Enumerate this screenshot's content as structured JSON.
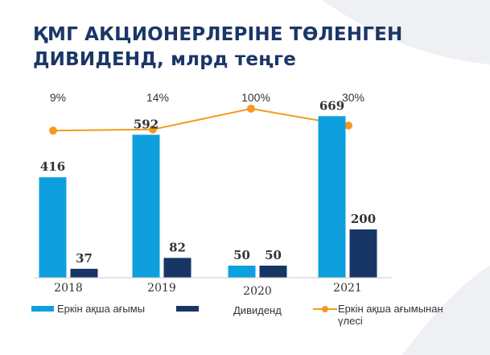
{
  "title": {
    "line1": "ҚМГ АКЦИОНЕРЛЕРІНЕ ТӨЛЕНГЕН",
    "line2": "ДИВИДЕНД, млрд теңге"
  },
  "colors": {
    "free_cash_flow": "#0ea0de",
    "dividend": "#173665",
    "share_line": "#f39a1e",
    "axis": "#c8c8c8",
    "decor": "#eef0f4"
  },
  "chart_data": {
    "type": "bar+line",
    "categories": [
      "2018",
      "2019",
      "2020",
      "2021"
    ],
    "series": [
      {
        "name": "Еркін ақша ағымы",
        "type": "bar",
        "values": [
          416,
          592,
          50,
          669
        ]
      },
      {
        "name": "Дивиденд",
        "type": "bar",
        "values": [
          37,
          82,
          50,
          200
        ]
      },
      {
        "name": "Еркін ақша ағымынан үлесі",
        "type": "line",
        "values": [
          9,
          14,
          100,
          30
        ],
        "labels": [
          "9%",
          "14%",
          "100%",
          "30%"
        ]
      }
    ],
    "ylim": [
      0,
      750
    ],
    "line_ylim": [
      -600,
      150
    ]
  },
  "legend": {
    "items": [
      {
        "label": "Еркін ақша ағымы"
      },
      {
        "label": "Дивиденд"
      },
      {
        "label_line1": "Еркін ақша ағымынан",
        "label_line2": "үлесі"
      }
    ]
  }
}
